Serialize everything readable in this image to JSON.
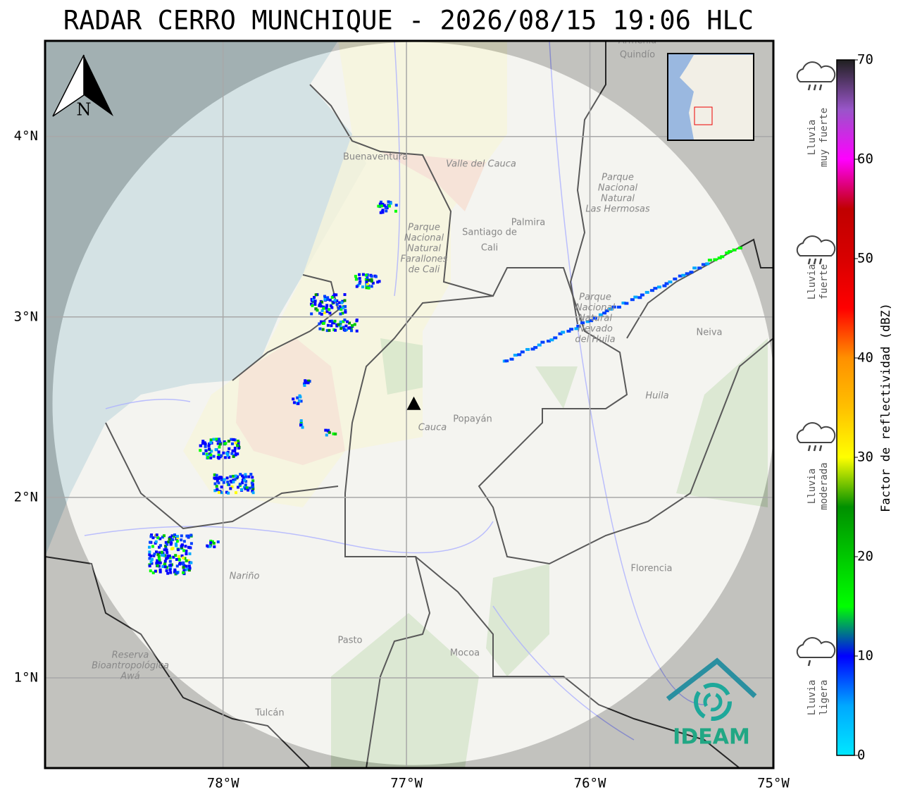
{
  "header": {
    "title": "RADAR CERRO MUNCHIQUE - 2026/08/15 19:06 HLC"
  },
  "map": {
    "lonlim": [
      -78.97,
      -75
    ],
    "latlim": [
      0.5,
      4.53
    ],
    "lon_ticks": [
      {
        "value": -78,
        "label": "78°W"
      },
      {
        "value": -77,
        "label": "77°W"
      },
      {
        "value": -76,
        "label": "76°W"
      },
      {
        "value": -75,
        "label": "75°W"
      }
    ],
    "lat_ticks": [
      {
        "value": 4,
        "label": "4°N"
      },
      {
        "value": 3,
        "label": "3°N"
      },
      {
        "value": 2,
        "label": "2°N"
      },
      {
        "value": 1,
        "label": "1°N"
      }
    ],
    "grid": true,
    "radar_site": {
      "lon": -76.96,
      "lat": 2.52
    },
    "north_label": "N",
    "logo": "IDEAM",
    "places": [
      {
        "lines": [
          "Armenia"
        ]
      },
      {
        "lines": [
          "Quindío"
        ]
      },
      {
        "lines": [
          "Buenaventura"
        ]
      },
      {
        "lines": [
          "Valle del Cauca"
        ]
      },
      {
        "lines": [
          "Palmira"
        ]
      },
      {
        "lines": [
          "Santiago de",
          "Cali"
        ]
      },
      {
        "lines": [
          "Parque",
          "Nacional",
          "Natural",
          "Farallones",
          "de Cali"
        ]
      },
      {
        "lines": [
          "Parque",
          "Nacional",
          "Natural",
          "Las Hermosas"
        ]
      },
      {
        "lines": [
          "Parque",
          "Nacional",
          "Natural",
          "Nevado",
          "del Huila"
        ]
      },
      {
        "lines": [
          "Neiva"
        ]
      },
      {
        "lines": [
          "Huila"
        ]
      },
      {
        "lines": [
          "Cauca"
        ]
      },
      {
        "lines": [
          "Popayán"
        ]
      },
      {
        "lines": [
          "Nariño"
        ]
      },
      {
        "lines": [
          "Pasto"
        ]
      },
      {
        "lines": [
          "Mocoa"
        ]
      },
      {
        "lines": [
          "Florencia"
        ]
      },
      {
        "lines": [
          "Reserva",
          "Bioantropológica",
          "Awá"
        ]
      },
      {
        "lines": [
          "Tulcán"
        ]
      }
    ]
  },
  "colorbar": {
    "label": "Factor de reflectividad (dBZ)",
    "lim": [
      0,
      70
    ],
    "ticks": [
      0,
      10,
      20,
      30,
      40,
      50,
      60,
      70
    ],
    "colors": [
      "#00e8ff",
      "#00a8ff",
      "#0000ff",
      "#00ff00",
      "#00c800",
      "#009000",
      "#ffff00",
      "#ffc000",
      "#ff9000",
      "#ff0000",
      "#d80000",
      "#c00000",
      "#ff00ff",
      "#9955c9",
      "#202020"
    ]
  },
  "rain_legend": [
    {
      "lines": [
        "Lluvia",
        "muy fuerte"
      ]
    },
    {
      "lines": [
        "Lluvia",
        "fuerte"
      ]
    },
    {
      "lines": [
        "Lluvia",
        "moderada"
      ]
    },
    {
      "lines": [
        "Lluvia",
        "ligera"
      ]
    }
  ]
}
